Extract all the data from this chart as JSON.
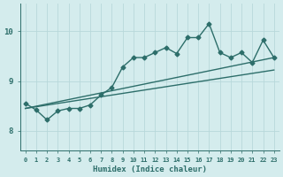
{
  "xlabel": "Humidex (Indice chaleur)",
  "bg_color": "#d4eced",
  "grid_color": "#b8d8da",
  "line_color": "#2d6e6a",
  "xlim": [
    -0.5,
    23.5
  ],
  "ylim": [
    7.6,
    10.55
  ],
  "yticks": [
    8,
    9,
    10
  ],
  "xticks": [
    0,
    1,
    2,
    3,
    4,
    5,
    6,
    7,
    8,
    9,
    10,
    11,
    12,
    13,
    14,
    15,
    16,
    17,
    18,
    19,
    20,
    21,
    22,
    23
  ],
  "series1_x": [
    0,
    1,
    2,
    3,
    4,
    5,
    6,
    7,
    8,
    9,
    10,
    11,
    12,
    13,
    14,
    15,
    16,
    17,
    18,
    19,
    20,
    21,
    22,
    23
  ],
  "series1_y": [
    8.55,
    8.42,
    8.22,
    8.4,
    8.45,
    8.45,
    8.52,
    8.72,
    8.87,
    9.28,
    9.47,
    9.47,
    9.57,
    9.67,
    9.55,
    9.87,
    9.87,
    10.15,
    9.57,
    9.47,
    9.57,
    9.37,
    9.82,
    9.47
  ],
  "series2_x": [
    0,
    23
  ],
  "series2_y": [
    8.45,
    9.47
  ],
  "series3_x": [
    0,
    23
  ],
  "series3_y": [
    8.45,
    9.22
  ],
  "marker": "D",
  "marker_size": 2.5,
  "line_width": 1.0
}
